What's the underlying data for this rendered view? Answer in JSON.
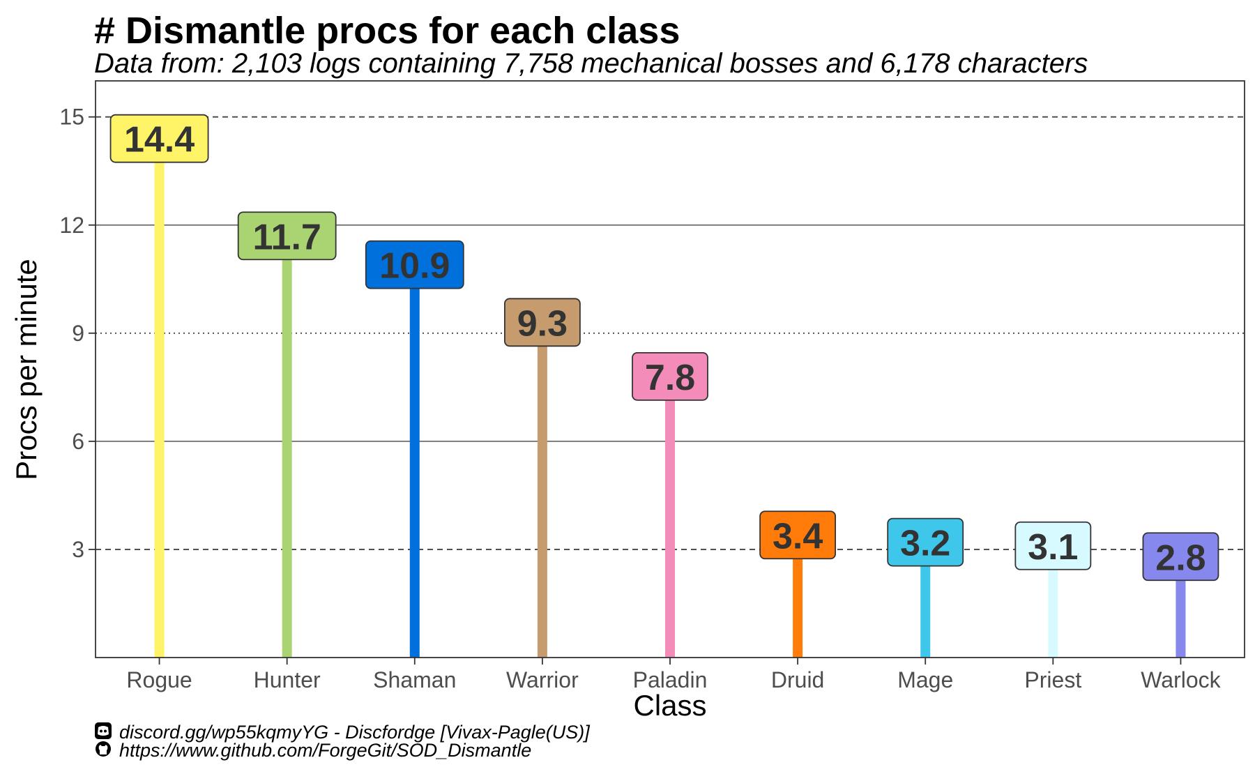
{
  "chart_data": {
    "type": "bar",
    "title": "# Dismantle procs for each class",
    "subtitle": "Data from: 2,103 logs containing 7,758 mechanical bosses and 6,178 characters",
    "xlabel": "Class",
    "ylabel": "Procs per minute",
    "categories": [
      "Rogue",
      "Hunter",
      "Shaman",
      "Warrior",
      "Paladin",
      "Druid",
      "Mage",
      "Priest",
      "Warlock"
    ],
    "values": [
      14.4,
      11.7,
      10.9,
      9.3,
      7.8,
      3.4,
      3.2,
      3.1,
      2.8
    ],
    "data_labels": [
      "14.4",
      "11.7",
      "10.9",
      "9.3",
      "7.8",
      "3.4",
      "3.2",
      "3.1",
      "2.8"
    ],
    "colors": [
      "#FFF468",
      "#AAD372",
      "#0070DD",
      "#C69B6D",
      "#F48CBA",
      "#FF7C0A",
      "#3FC7EB",
      "#D6FAFF",
      "#8788EE"
    ],
    "ylim": [
      0,
      16
    ],
    "yticks": [
      3,
      6,
      9,
      12,
      15
    ],
    "ytick_labels": [
      "3",
      "6",
      "9",
      "12",
      "15"
    ],
    "reference_lines": [
      {
        "y": 3,
        "style": "dashed"
      },
      {
        "y": 9,
        "style": "dotted"
      },
      {
        "y": 15,
        "style": "dashed"
      }
    ],
    "grid_lines": [
      6,
      12
    ],
    "legend": "none"
  },
  "caption": {
    "line1": "discord.gg/wp55kqmyYG - Discfordge [Vivax-Pagle(US)]",
    "line1_icon": "discord-icon",
    "line2": "https://www.github.com/ForgeGit/SOD_Dismantle",
    "line2_icon": "github-icon"
  }
}
